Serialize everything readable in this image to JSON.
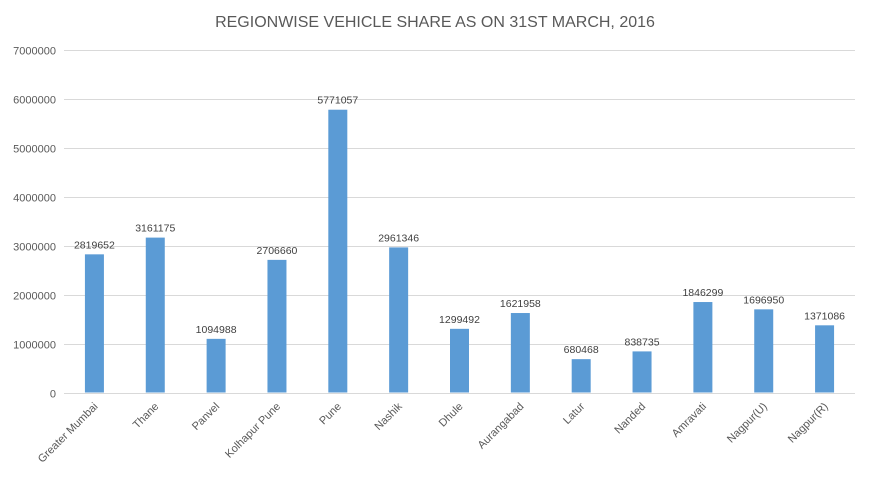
{
  "chart_data": {
    "type": "bar",
    "title": "REGIONWISE VEHICLE SHARE AS ON 31ST MARCH, 2016",
    "categories": [
      "Greater Mumbai",
      "Thane",
      "Panvel",
      "Kolhapur Pune",
      "Pune",
      "Nashik",
      "Dhule",
      "Aurangabad",
      "Latur",
      "Nanded",
      "Amravati",
      "Nagpur(U)",
      "Nagpur(R)"
    ],
    "values": [
      2819652,
      3161175,
      1094988,
      2706660,
      5771057,
      2961346,
      1299492,
      1621958,
      680468,
      838735,
      1846299,
      1696950,
      1371086
    ],
    "data_labels": [
      "2819652",
      "3161175",
      "1094988",
      "2706660",
      "5771057",
      "2961346",
      "1299492",
      "1621958",
      "680468",
      "838735",
      "1846299",
      "1696950",
      "1371086"
    ],
    "y_ticks": [
      "0",
      "1000000",
      "2000000",
      "3000000",
      "4000000",
      "5000000",
      "6000000",
      "7000000"
    ],
    "ylim": [
      0,
      7000000
    ],
    "grid": true,
    "legend": "none",
    "bar_color": "#5b9bd5"
  }
}
